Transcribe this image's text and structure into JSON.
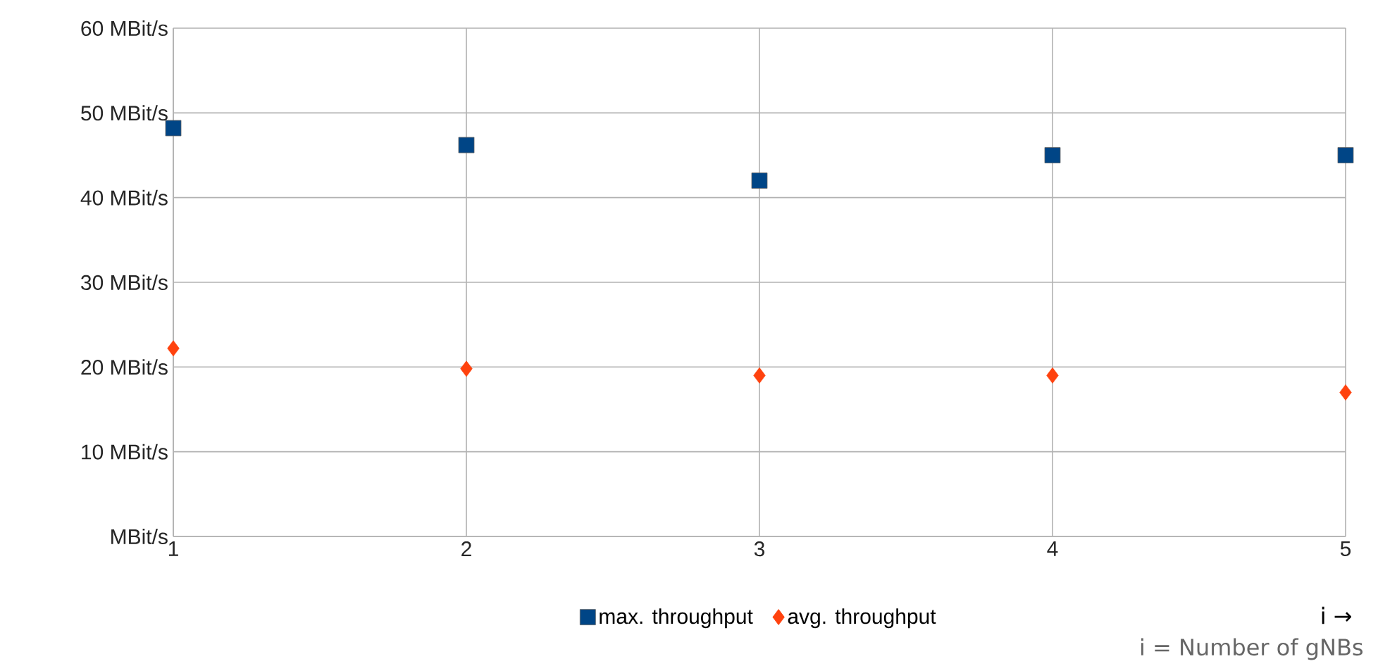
{
  "chart_data": {
    "type": "scatter",
    "x": [
      1,
      2,
      3,
      4,
      5
    ],
    "series": [
      {
        "name": "max. throughput",
        "color": "#004586",
        "marker": "square",
        "values": [
          48.2,
          46.2,
          42,
          45,
          45
        ]
      },
      {
        "name": "avg. throughput",
        "color": "#ff420e",
        "marker": "diamond",
        "values": [
          22.2,
          19.8,
          19,
          19,
          17
        ]
      }
    ],
    "xlim": [
      1,
      5
    ],
    "xticks": [
      1,
      2,
      3,
      4,
      5
    ],
    "ylim": [
      0,
      60
    ],
    "yticks": [
      {
        "value": 0,
        "label": "MBit/s"
      },
      {
        "value": 10,
        "label": "10 MBit/s"
      },
      {
        "value": 20,
        "label": "20 MBit/s"
      },
      {
        "value": 30,
        "label": "30 MBit/s"
      },
      {
        "value": 40,
        "label": "40 MBit/s"
      },
      {
        "value": 50,
        "label": "50 MBit/s"
      },
      {
        "value": 60,
        "label": "60 MBit/s"
      }
    ],
    "grid": true,
    "legend": "bottom",
    "annotations": [
      "i →",
      "i = Number of gNBs"
    ]
  }
}
